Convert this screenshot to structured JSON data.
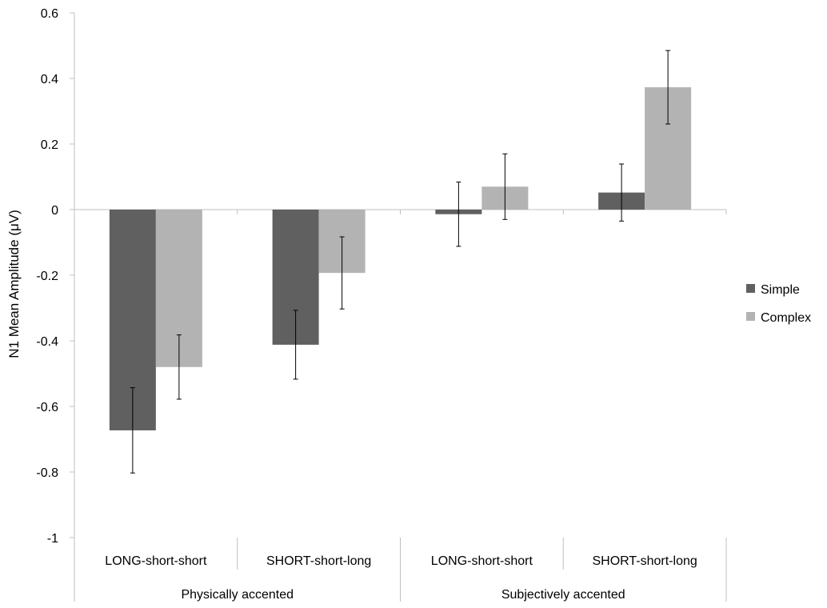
{
  "chart_data": {
    "type": "bar",
    "ylabel": "N1 Mean Amplitude (μV)",
    "ylim": [
      -1,
      0.6
    ],
    "y_ticks": [
      "0.6",
      "0.4",
      "0.2",
      "0",
      "-0.2",
      "-0.4",
      "-0.6",
      "-0.8",
      "-1"
    ],
    "y_tick_values": [
      0.6,
      0.4,
      0.2,
      0,
      -0.2,
      -0.4,
      -0.6,
      -0.8,
      -1
    ],
    "categories": [
      "LONG-short-short",
      "SHORT-short-long",
      "LONG-short-short",
      "SHORT-short-long"
    ],
    "groups": [
      {
        "label": "Physically accented",
        "categories": [
          0,
          1
        ]
      },
      {
        "label": "Subjectively accented",
        "categories": [
          2,
          3
        ]
      }
    ],
    "series": [
      {
        "name": "Simple",
        "color": "#606060",
        "values": [
          -0.673,
          -0.412,
          -0.014,
          0.052
        ],
        "error": [
          0.13,
          0.105,
          0.098,
          0.087
        ]
      },
      {
        "name": "Complex",
        "color": "#b3b3b3",
        "values": [
          -0.48,
          -0.193,
          0.07,
          0.373
        ],
        "error": [
          0.098,
          0.11,
          0.1,
          0.112
        ]
      }
    ],
    "legend_position": "right",
    "grid": false
  }
}
